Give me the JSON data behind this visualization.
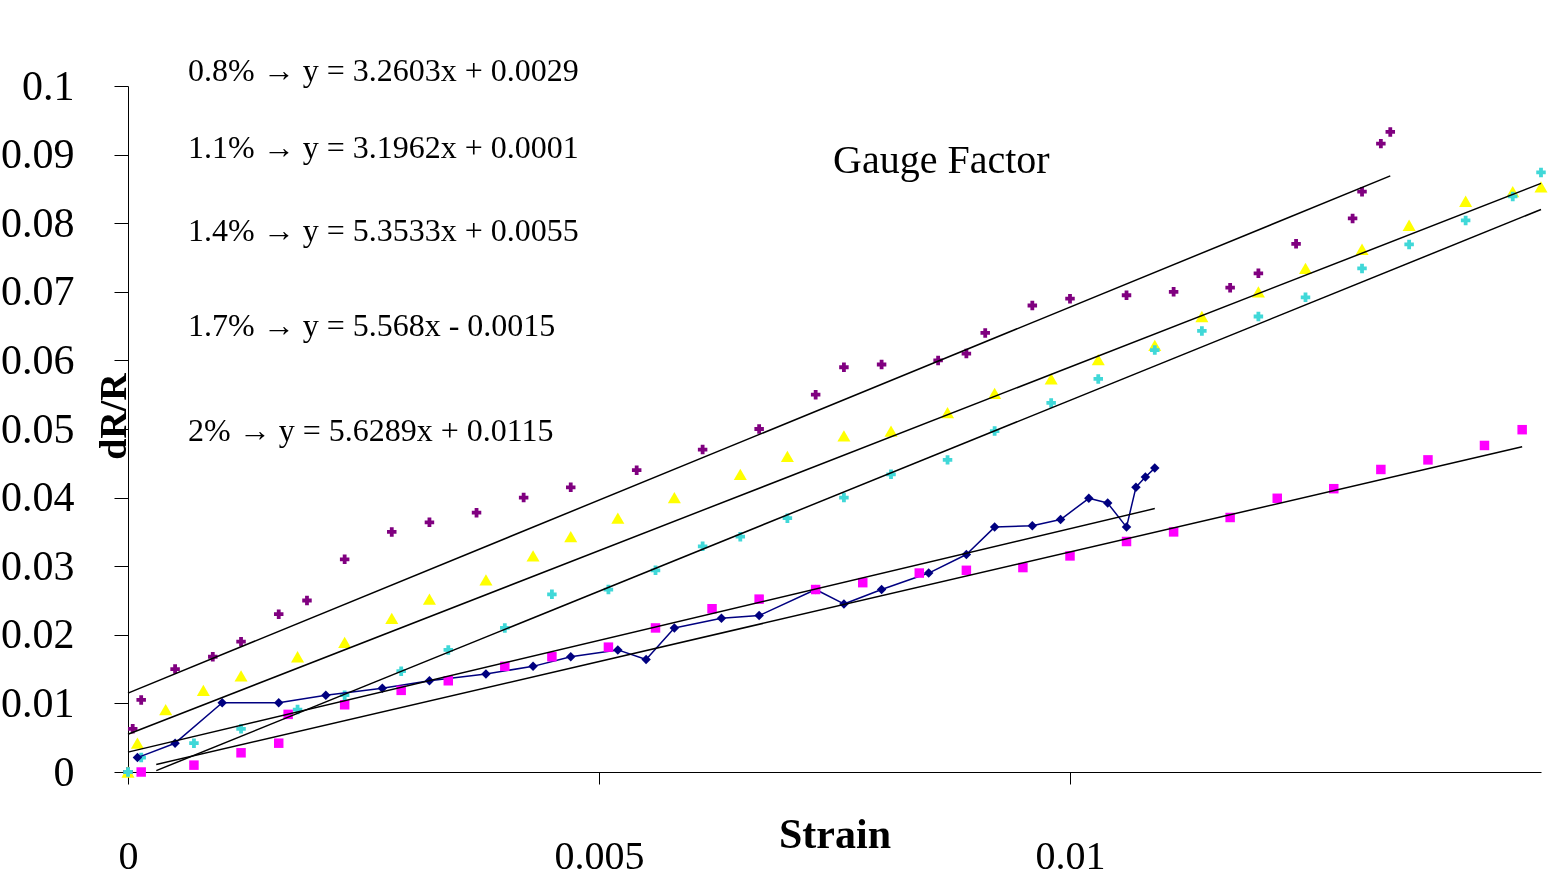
{
  "chart_data": {
    "type": "scatter",
    "title": "Gauge Factor",
    "xlabel": "Strain",
    "ylabel": "dR/R",
    "xlim": [
      0,
      0.015
    ],
    "xticks": [
      0,
      0.005,
      0.01
    ],
    "ylim": [
      0,
      0.1
    ],
    "yticks": [
      0,
      0.01,
      0.02,
      0.03,
      0.04,
      0.05,
      0.06,
      0.07,
      0.08,
      0.09,
      0.1
    ],
    "grid": false,
    "annotations": [
      "0.8% → y = 3.2603x + 0.0029",
      "1.1% → y = 3.1962x + 0.0001",
      "1.4% → y = 5.3533x + 0.0055",
      "1.7% → y = 5.568x - 0.0015",
      "2% → y = 5.6289x + 0.0115"
    ],
    "series": [
      {
        "marker": "cross",
        "color": "#800080",
        "x": [
          0,
          5e-05,
          0.00014,
          0.0005,
          0.0009,
          0.0012,
          0.0016,
          0.0019,
          0.0023,
          0.0028,
          0.0032,
          0.0037,
          0.0042,
          0.0047,
          0.0054,
          0.0061,
          0.0067,
          0.0073,
          0.0076,
          0.008,
          0.0086,
          0.0089,
          0.0091,
          0.0096,
          0.01,
          0.0106,
          0.0111,
          0.0117,
          0.012,
          0.0124,
          0.013,
          0.0131,
          0.0133,
          0.0134
        ],
        "values": [
          0,
          0.0063,
          0.0105,
          0.015,
          0.0168,
          0.019,
          0.023,
          0.025,
          0.031,
          0.035,
          0.0364,
          0.0378,
          0.04,
          0.0415,
          0.044,
          0.047,
          0.05,
          0.055,
          0.059,
          0.0594,
          0.06,
          0.061,
          0.064,
          0.068,
          0.069,
          0.0695,
          0.07,
          0.0706,
          0.0727,
          0.077,
          0.0807,
          0.0846,
          0.0916,
          0.0933
        ]
      },
      {
        "marker": "triangle",
        "color": "#ffff00",
        "x": [
          0,
          0.0001,
          0.0004,
          0.0008,
          0.0012,
          0.0018,
          0.0023,
          0.0028,
          0.0032,
          0.0038,
          0.0043,
          0.0047,
          0.0052,
          0.0058,
          0.0065,
          0.007,
          0.0076,
          0.0081,
          0.0087,
          0.0092,
          0.0098,
          0.0103,
          0.0109,
          0.0114,
          0.012,
          0.0125,
          0.0131,
          0.0136,
          0.0142,
          0.0147,
          0.015
        ],
        "values": [
          0,
          0.0042,
          0.0091,
          0.0119,
          0.014,
          0.0168,
          0.0189,
          0.0224,
          0.0252,
          0.028,
          0.0315,
          0.0343,
          0.037,
          0.04,
          0.0434,
          0.046,
          0.049,
          0.0497,
          0.0524,
          0.0552,
          0.0573,
          0.0601,
          0.0622,
          0.0664,
          0.07,
          0.0734,
          0.0762,
          0.0797,
          0.0832,
          0.0846,
          0.0853
        ]
      },
      {
        "marker": "cross",
        "color": "#40d8d8",
        "x": [
          0,
          0.00014,
          0.0007,
          0.0012,
          0.0018,
          0.0023,
          0.0029,
          0.0034,
          0.004,
          0.0045,
          0.0051,
          0.0056,
          0.0061,
          0.0065,
          0.007,
          0.0076,
          0.0081,
          0.0087,
          0.0092,
          0.0098,
          0.0103,
          0.0109,
          0.0114,
          0.012,
          0.0125,
          0.0131,
          0.0136,
          0.0142,
          0.0147,
          0.015
        ],
        "values": [
          0,
          0.0021,
          0.0042,
          0.0063,
          0.0091,
          0.0112,
          0.0147,
          0.0178,
          0.021,
          0.0259,
          0.0266,
          0.0294,
          0.0329,
          0.0343,
          0.037,
          0.04,
          0.0434,
          0.0455,
          0.0497,
          0.0538,
          0.0573,
          0.0615,
          0.0643,
          0.0664,
          0.0692,
          0.0734,
          0.0769,
          0.0804,
          0.0839,
          0.0874
        ]
      },
      {
        "type": "line",
        "marker": "diamond",
        "color": "#000080",
        "x": [
          0.0001,
          0.0005,
          0.001,
          0.0016,
          0.0021,
          0.0027,
          0.0032,
          0.0038,
          0.0043,
          0.0047,
          0.0052,
          0.0055,
          0.0058,
          0.0063,
          0.0067,
          0.0073,
          0.0076,
          0.008,
          0.0085,
          0.0089,
          0.0092,
          0.0096,
          0.0099,
          0.0102,
          0.0104,
          0.0106,
          0.0107,
          0.0108,
          0.0109
        ],
        "values": [
          0.0021,
          0.0042,
          0.0101,
          0.0101,
          0.0112,
          0.0122,
          0.0133,
          0.0143,
          0.0154,
          0.0168,
          0.0178,
          0.0164,
          0.021,
          0.0224,
          0.0228,
          0.0266,
          0.0245,
          0.0266,
          0.029,
          0.0317,
          0.0357,
          0.0359,
          0.0368,
          0.0399,
          0.0392,
          0.0357,
          0.0415,
          0.043,
          0.0443
        ]
      },
      {
        "marker": "square",
        "color": "#ff00ff",
        "x": [
          0.00014,
          0.0007,
          0.0012,
          0.0016,
          0.0017,
          0.0023,
          0.0029,
          0.0034,
          0.004,
          0.0045,
          0.0051,
          0.0056,
          0.0062,
          0.0067,
          0.0073,
          0.0078,
          0.0084,
          0.0089,
          0.0095,
          0.01,
          0.0106,
          0.0111,
          0.0117,
          0.0122,
          0.0128,
          0.0133,
          0.0138,
          0.0144,
          0.0148
        ],
        "values": [
          0,
          0.001,
          0.0028,
          0.0042,
          0.0084,
          0.0098,
          0.0119,
          0.0133,
          0.0154,
          0.0168,
          0.0182,
          0.021,
          0.0238,
          0.0252,
          0.0266,
          0.0276,
          0.029,
          0.0294,
          0.0298,
          0.0315,
          0.0336,
          0.035,
          0.0371,
          0.0399,
          0.0413,
          0.0441,
          0.0455,
          0.0476,
          0.0499
        ]
      },
      {
        "type": "line",
        "color": "#000000",
        "x": [
          0,
          0.0109
        ],
        "values": [
          0.0029,
          0.0384
        ]
      },
      {
        "type": "line",
        "color": "#000000",
        "x": [
          0.0003,
          0.0148
        ],
        "values": [
          0.0011,
          0.0474
        ]
      },
      {
        "type": "line",
        "color": "#000000",
        "x": [
          0,
          0.015
        ],
        "values": [
          0.0055,
          0.0858
        ]
      },
      {
        "type": "line",
        "color": "#000000",
        "x": [
          0.0003,
          0.015
        ],
        "values": [
          0.0002,
          0.082
        ]
      },
      {
        "type": "line",
        "color": "#000000",
        "x": [
          0,
          0.0134
        ],
        "values": [
          0.0115,
          0.0869
        ]
      }
    ]
  }
}
